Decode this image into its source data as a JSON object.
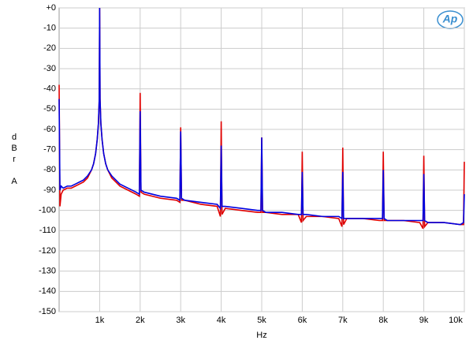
{
  "chart_data": {
    "type": "line",
    "xlabel": "Hz",
    "ylabel": "dBr A",
    "logo": "Ap",
    "x": [
      0,
      20,
      50,
      100,
      200,
      300,
      400,
      500,
      600,
      700,
      800,
      850,
      900,
      940,
      970,
      990,
      1000,
      1010,
      1030,
      1060,
      1100,
      1150,
      1200,
      1300,
      1400,
      1500,
      1700,
      1900,
      1980,
      2000,
      2020,
      2100,
      2500,
      2900,
      2980,
      3000,
      3020,
      3100,
      3500,
      3900,
      3980,
      4000,
      4020,
      4100,
      4500,
      4900,
      4980,
      5000,
      5020,
      5100,
      5500,
      5900,
      5980,
      6000,
      6020,
      6100,
      6500,
      6900,
      6980,
      7000,
      7020,
      7100,
      7500,
      7900,
      7980,
      8000,
      8020,
      8100,
      8500,
      8900,
      8980,
      9000,
      9020,
      9100,
      9500,
      9900,
      9980,
      10000
    ],
    "series": [
      {
        "color": "#e00000",
        "values": [
          -38,
          -98,
          -92,
          -90,
          -89,
          -89,
          -88,
          -87,
          -86,
          -84,
          -80,
          -77,
          -72,
          -65,
          -57,
          -45,
          0,
          -45,
          -57,
          -65,
          -72,
          -77,
          -80,
          -84,
          -86,
          -88,
          -90,
          -92,
          -93,
          -42,
          -91,
          -92,
          -94,
          -95,
          -96,
          -59,
          -95,
          -95,
          -97,
          -98,
          -103,
          -56,
          -102,
          -99,
          -100,
          -101,
          -101,
          -64,
          -101,
          -101,
          -102,
          -102,
          -106,
          -71,
          -105,
          -103,
          -103,
          -104,
          -108,
          -69,
          -107,
          -104,
          -104,
          -105,
          -105,
          -71,
          -105,
          -105,
          -105,
          -106,
          -109,
          -73,
          -108,
          -106,
          -106,
          -107,
          -107,
          -76
        ]
      },
      {
        "color": "#0000e0",
        "values": [
          -45,
          -90,
          -88,
          -89,
          -88,
          -88,
          -87,
          -86,
          -85,
          -83,
          -80,
          -77,
          -72,
          -65,
          -57,
          -45,
          0,
          -45,
          -57,
          -65,
          -72,
          -77,
          -80,
          -83,
          -85,
          -87,
          -89,
          -91,
          -92,
          -51,
          -90,
          -91,
          -93,
          -94,
          -95,
          -61,
          -94,
          -95,
          -96,
          -97,
          -99,
          -68,
          -98,
          -98,
          -99,
          -100,
          -100,
          -64,
          -100,
          -101,
          -101,
          -102,
          -102,
          -81,
          -102,
          -102,
          -103,
          -103,
          -104,
          -81,
          -104,
          -104,
          -104,
          -104,
          -104,
          -80,
          -104,
          -105,
          -105,
          -105,
          -105,
          -82,
          -105,
          -106,
          -106,
          -107,
          -106,
          -92
        ]
      }
    ],
    "xlim": [
      0,
      10000
    ],
    "xticks": [
      {
        "value": 1000,
        "label": "1k"
      },
      {
        "value": 2000,
        "label": "2k"
      },
      {
        "value": 3000,
        "label": "3k"
      },
      {
        "value": 4000,
        "label": "4k"
      },
      {
        "value": 5000,
        "label": "5k"
      },
      {
        "value": 6000,
        "label": "6k"
      },
      {
        "value": 7000,
        "label": "7k"
      },
      {
        "value": 8000,
        "label": "8k"
      },
      {
        "value": 9000,
        "label": "9k"
      },
      {
        "value": 10000,
        "label": "10k"
      }
    ],
    "ylim": [
      -150,
      0
    ],
    "yticks": [
      {
        "value": 0,
        "label": "+0"
      },
      -10,
      -20,
      -30,
      -40,
      -50,
      -60,
      -70,
      -80,
      -90,
      -100,
      -110,
      -120,
      -130,
      -140,
      -150
    ],
    "grid": true
  }
}
